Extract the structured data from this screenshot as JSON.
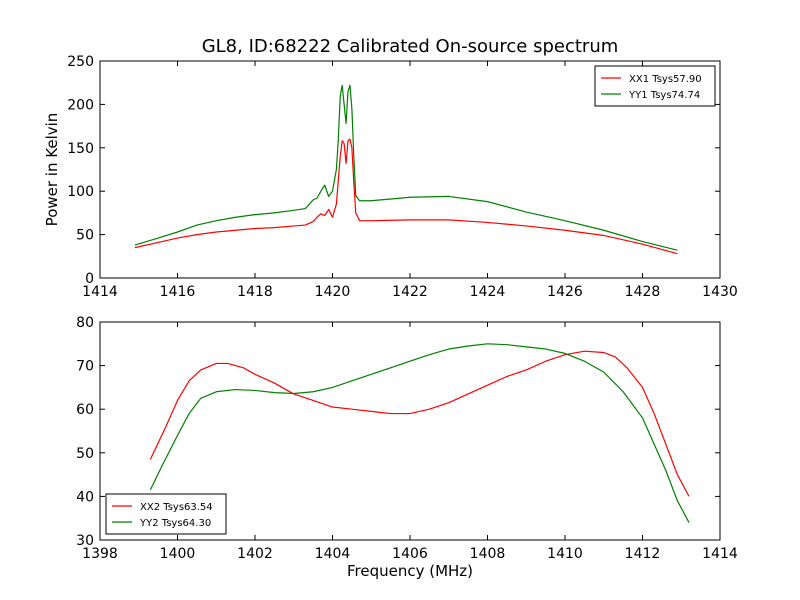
{
  "title": "GL8, ID:68222 Calibrated On-source spectrum",
  "chart_data": [
    {
      "type": "line",
      "ylabel": "Power in Kelvin",
      "xlabel": "",
      "xlim": [
        1414,
        1430
      ],
      "ylim": [
        0,
        250
      ],
      "xticks": [
        1414,
        1416,
        1418,
        1420,
        1422,
        1424,
        1426,
        1428,
        1430
      ],
      "yticks": [
        0,
        50,
        100,
        150,
        200,
        250
      ],
      "grid": false,
      "legend_position": "top-right",
      "series": [
        {
          "name": "XX1 Tsys57.90",
          "color": "#ff0000",
          "points": [
            [
              1414.9,
              35
            ],
            [
              1415.5,
              41
            ],
            [
              1416.0,
              46
            ],
            [
              1416.5,
              50
            ],
            [
              1417.0,
              53
            ],
            [
              1417.5,
              55
            ],
            [
              1418.0,
              57
            ],
            [
              1418.5,
              58
            ],
            [
              1419.0,
              60
            ],
            [
              1419.3,
              61
            ],
            [
              1419.5,
              65
            ],
            [
              1419.6,
              70
            ],
            [
              1419.7,
              74
            ],
            [
              1419.8,
              72
            ],
            [
              1419.9,
              79
            ],
            [
              1420.0,
              70
            ],
            [
              1420.1,
              85
            ],
            [
              1420.2,
              140
            ],
            [
              1420.25,
              158
            ],
            [
              1420.3,
              155
            ],
            [
              1420.35,
              132
            ],
            [
              1420.4,
              158
            ],
            [
              1420.45,
              160
            ],
            [
              1420.5,
              150
            ],
            [
              1420.55,
              110
            ],
            [
              1420.6,
              75
            ],
            [
              1420.7,
              66
            ],
            [
              1421.0,
              66
            ],
            [
              1422.0,
              67
            ],
            [
              1423.0,
              67
            ],
            [
              1424.0,
              64
            ],
            [
              1425.0,
              60
            ],
            [
              1426.0,
              55
            ],
            [
              1427.0,
              49
            ],
            [
              1428.0,
              39
            ],
            [
              1428.9,
              28
            ]
          ]
        },
        {
          "name": "YY1 Tsys74.74",
          "color": "#008000",
          "points": [
            [
              1414.9,
              38
            ],
            [
              1415.5,
              46
            ],
            [
              1416.0,
              53
            ],
            [
              1416.5,
              61
            ],
            [
              1417.0,
              66
            ],
            [
              1417.5,
              70
            ],
            [
              1418.0,
              73
            ],
            [
              1418.5,
              75
            ],
            [
              1419.0,
              78
            ],
            [
              1419.3,
              80
            ],
            [
              1419.5,
              90
            ],
            [
              1419.6,
              92
            ],
            [
              1419.7,
              100
            ],
            [
              1419.8,
              107
            ],
            [
              1419.9,
              94
            ],
            [
              1420.0,
              100
            ],
            [
              1420.1,
              125
            ],
            [
              1420.15,
              160
            ],
            [
              1420.2,
              210
            ],
            [
              1420.25,
              222
            ],
            [
              1420.3,
              200
            ],
            [
              1420.35,
              178
            ],
            [
              1420.4,
              215
            ],
            [
              1420.45,
              222
            ],
            [
              1420.5,
              195
            ],
            [
              1420.55,
              140
            ],
            [
              1420.6,
              95
            ],
            [
              1420.7,
              89
            ],
            [
              1421.0,
              89
            ],
            [
              1422.0,
              93
            ],
            [
              1423.0,
              94
            ],
            [
              1424.0,
              88
            ],
            [
              1425.0,
              76
            ],
            [
              1426.0,
              66
            ],
            [
              1427.0,
              55
            ],
            [
              1428.0,
              42
            ],
            [
              1428.9,
              32
            ]
          ]
        }
      ]
    },
    {
      "type": "line",
      "ylabel": "",
      "xlabel": "Frequency (MHz)",
      "xlim": [
        1398,
        1414
      ],
      "ylim": [
        30,
        80
      ],
      "xticks": [
        1398,
        1400,
        1402,
        1404,
        1406,
        1408,
        1410,
        1412,
        1414
      ],
      "yticks": [
        30,
        40,
        50,
        60,
        70,
        80
      ],
      "grid": false,
      "legend_position": "bottom-left",
      "series": [
        {
          "name": "XX2 Tsys63.54",
          "color": "#ff0000",
          "points": [
            [
              1399.3,
              48.5
            ],
            [
              1399.7,
              56
            ],
            [
              1400.0,
              62
            ],
            [
              1400.3,
              66.5
            ],
            [
              1400.6,
              69
            ],
            [
              1401.0,
              70.5
            ],
            [
              1401.3,
              70.5
            ],
            [
              1401.7,
              69.5
            ],
            [
              1402.0,
              68
            ],
            [
              1402.5,
              66
            ],
            [
              1403.0,
              63.5
            ],
            [
              1403.5,
              62
            ],
            [
              1404.0,
              60.5
            ],
            [
              1404.5,
              60
            ],
            [
              1405.0,
              59.5
            ],
            [
              1405.5,
              59
            ],
            [
              1406.0,
              59
            ],
            [
              1406.5,
              60
            ],
            [
              1407.0,
              61.5
            ],
            [
              1407.5,
              63.5
            ],
            [
              1408.0,
              65.5
            ],
            [
              1408.5,
              67.5
            ],
            [
              1409.0,
              69
            ],
            [
              1409.5,
              71
            ],
            [
              1410.0,
              72.5
            ],
            [
              1410.5,
              73.3
            ],
            [
              1411.0,
              73
            ],
            [
              1411.3,
              72
            ],
            [
              1411.6,
              69.5
            ],
            [
              1412.0,
              65
            ],
            [
              1412.3,
              59
            ],
            [
              1412.6,
              52
            ],
            [
              1412.9,
              45
            ],
            [
              1413.2,
              40
            ]
          ]
        },
        {
          "name": "YY2 Tsys64.30",
          "color": "#008000",
          "points": [
            [
              1399.3,
              41.5
            ],
            [
              1399.6,
              47
            ],
            [
              1400.0,
              54
            ],
            [
              1400.3,
              59
            ],
            [
              1400.6,
              62.5
            ],
            [
              1401.0,
              64
            ],
            [
              1401.5,
              64.5
            ],
            [
              1402.0,
              64.3
            ],
            [
              1402.5,
              63.8
            ],
            [
              1403.0,
              63.6
            ],
            [
              1403.5,
              64
            ],
            [
              1404.0,
              65
            ],
            [
              1404.5,
              66.5
            ],
            [
              1405.0,
              68
            ],
            [
              1405.5,
              69.5
            ],
            [
              1406.0,
              71
            ],
            [
              1406.5,
              72.5
            ],
            [
              1407.0,
              73.8
            ],
            [
              1407.5,
              74.5
            ],
            [
              1408.0,
              75
            ],
            [
              1408.5,
              74.8
            ],
            [
              1409.0,
              74.3
            ],
            [
              1409.5,
              73.8
            ],
            [
              1410.0,
              72.8
            ],
            [
              1410.5,
              71
            ],
            [
              1411.0,
              68.5
            ],
            [
              1411.5,
              64
            ],
            [
              1412.0,
              58
            ],
            [
              1412.3,
              52
            ],
            [
              1412.6,
              46
            ],
            [
              1412.9,
              39
            ],
            [
              1413.2,
              34
            ]
          ]
        }
      ]
    }
  ]
}
